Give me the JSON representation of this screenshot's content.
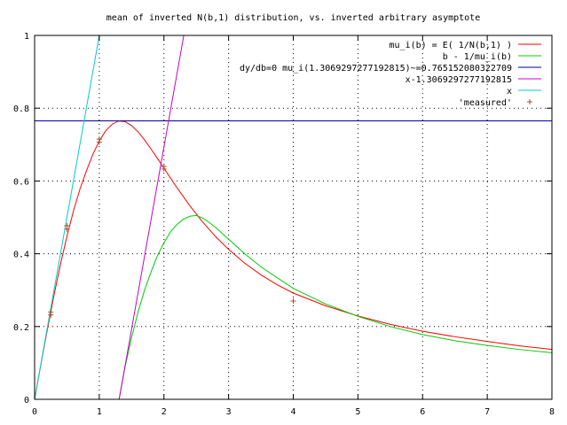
{
  "chart_data": {
    "type": "line",
    "title": "mean of inverted N(b,1) distribution, vs. inverted arbitrary asymptote",
    "xlabel": "",
    "ylabel": "",
    "xlim": [
      0,
      8
    ],
    "ylim": [
      0,
      1
    ],
    "x_ticks": [
      "0",
      "1",
      "2",
      "3",
      "4",
      "5",
      "6",
      "7",
      "8"
    ],
    "y_ticks": [
      "0",
      "0.2",
      "0.4",
      "0.6",
      "0.8",
      "1"
    ],
    "grid": true,
    "legend_position": "top-right",
    "series": [
      {
        "name": "mu_i(b) = E( 1/N(b,1) )",
        "color": "#ff0000",
        "style": "line",
        "x": [
          0,
          0.1,
          0.2,
          0.3,
          0.4,
          0.5,
          0.6,
          0.7,
          0.8,
          0.9,
          1.0,
          1.1,
          1.2,
          1.3,
          1.4,
          1.5,
          1.6,
          1.7,
          1.8,
          1.9,
          2.0,
          2.2,
          2.4,
          2.6,
          2.8,
          3.0,
          3.25,
          3.5,
          3.75,
          4.0,
          4.5,
          5.0,
          5.5,
          6.0,
          6.5,
          7.0,
          7.5,
          8.0
        ],
        "y": [
          0,
          0.099,
          0.194,
          0.286,
          0.371,
          0.448,
          0.517,
          0.577,
          0.627,
          0.673,
          0.71,
          0.738,
          0.756,
          0.765,
          0.763,
          0.752,
          0.735,
          0.713,
          0.688,
          0.662,
          0.635,
          0.582,
          0.532,
          0.487,
          0.447,
          0.412,
          0.374,
          0.342,
          0.315,
          0.292,
          0.257,
          0.229,
          0.206,
          0.187,
          0.172,
          0.159,
          0.147,
          0.137
        ]
      },
      {
        "name": "b - 1/mu_i(b)",
        "color": "#00cc00",
        "style": "line",
        "x": [
          1.3069,
          1.4,
          1.5,
          1.6,
          1.7,
          1.8,
          1.9,
          2.0,
          2.1,
          2.2,
          2.3,
          2.4,
          2.5,
          2.6,
          2.7,
          2.8,
          3.0,
          3.25,
          3.5,
          4.0,
          4.5,
          5.0,
          5.5,
          6.0,
          6.5,
          7.0,
          7.5,
          8.0
        ],
        "y": [
          0.0,
          0.09,
          0.17,
          0.24,
          0.3,
          0.35,
          0.395,
          0.43,
          0.46,
          0.48,
          0.495,
          0.503,
          0.505,
          0.498,
          0.486,
          0.472,
          0.44,
          0.4,
          0.364,
          0.305,
          0.262,
          0.228,
          0.2,
          0.178,
          0.161,
          0.148,
          0.137,
          0.128
        ]
      },
      {
        "name": "dy/db=0 mu_i(1.3069297277192815)~=0.765152080322709",
        "color": "#0000a0",
        "style": "hline",
        "y_value": 0.765152080322709
      },
      {
        "name": "x-1.3069297277192815",
        "color": "#cc00cc",
        "style": "line",
        "x": [
          1.3069297277192815,
          2.3069297277192815
        ],
        "y": [
          0,
          1
        ]
      },
      {
        "name": "x",
        "color": "#00cccc",
        "style": "line",
        "x": [
          0,
          1
        ],
        "y": [
          0,
          1
        ]
      },
      {
        "name": "'measured'",
        "color": "#a0522d",
        "style": "points",
        "x": [
          0.25,
          0.25,
          0.5,
          0.5,
          1.0,
          1.0,
          2.0,
          2.0,
          4.0
        ],
        "y": [
          0.24,
          0.232,
          0.477,
          0.468,
          0.715,
          0.707,
          0.64,
          0.633,
          0.27
        ]
      }
    ]
  }
}
